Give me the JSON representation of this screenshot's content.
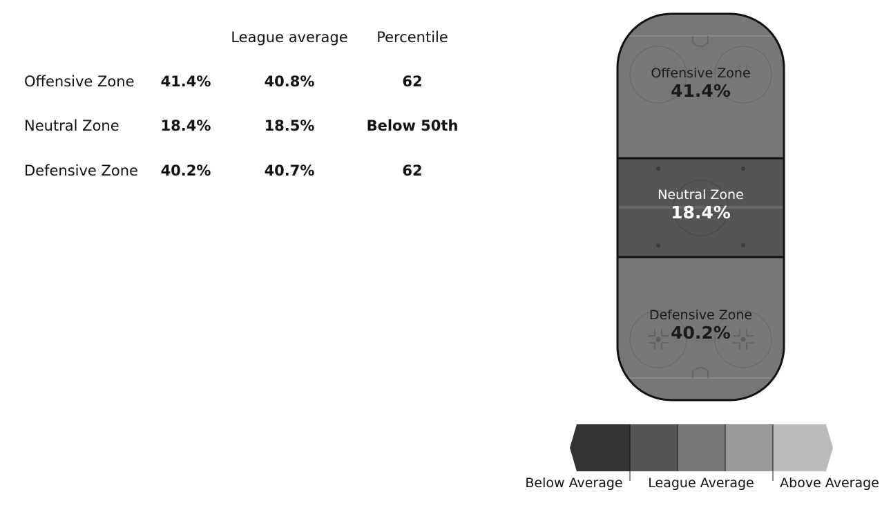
{
  "table": {
    "headers": {
      "league_average": "League average",
      "percentile": "Percentile"
    },
    "rows": [
      {
        "zone": "Offensive Zone",
        "value": "41.4%",
        "league_average": "40.8%",
        "percentile": "62"
      },
      {
        "zone": "Neutral Zone",
        "value": "18.4%",
        "league_average": "18.5%",
        "percentile": "Below 50th"
      },
      {
        "zone": "Defensive Zone",
        "value": "40.2%",
        "league_average": "40.7%",
        "percentile": "62"
      }
    ]
  },
  "rink": {
    "offensive": {
      "name": "Offensive Zone",
      "pct": "41.4%",
      "color": "#777777"
    },
    "neutral": {
      "name": "Neutral Zone",
      "pct": "18.4%",
      "color": "#555555"
    },
    "defensive": {
      "name": "Defensive Zone",
      "pct": "40.2%",
      "color": "#777777"
    }
  },
  "legend": {
    "labels": {
      "below": "Below Average",
      "league": "League Average",
      "above": "Above Average"
    },
    "colors": [
      "#333333",
      "#555555",
      "#777777",
      "#999999",
      "#bbbbbb"
    ]
  }
}
